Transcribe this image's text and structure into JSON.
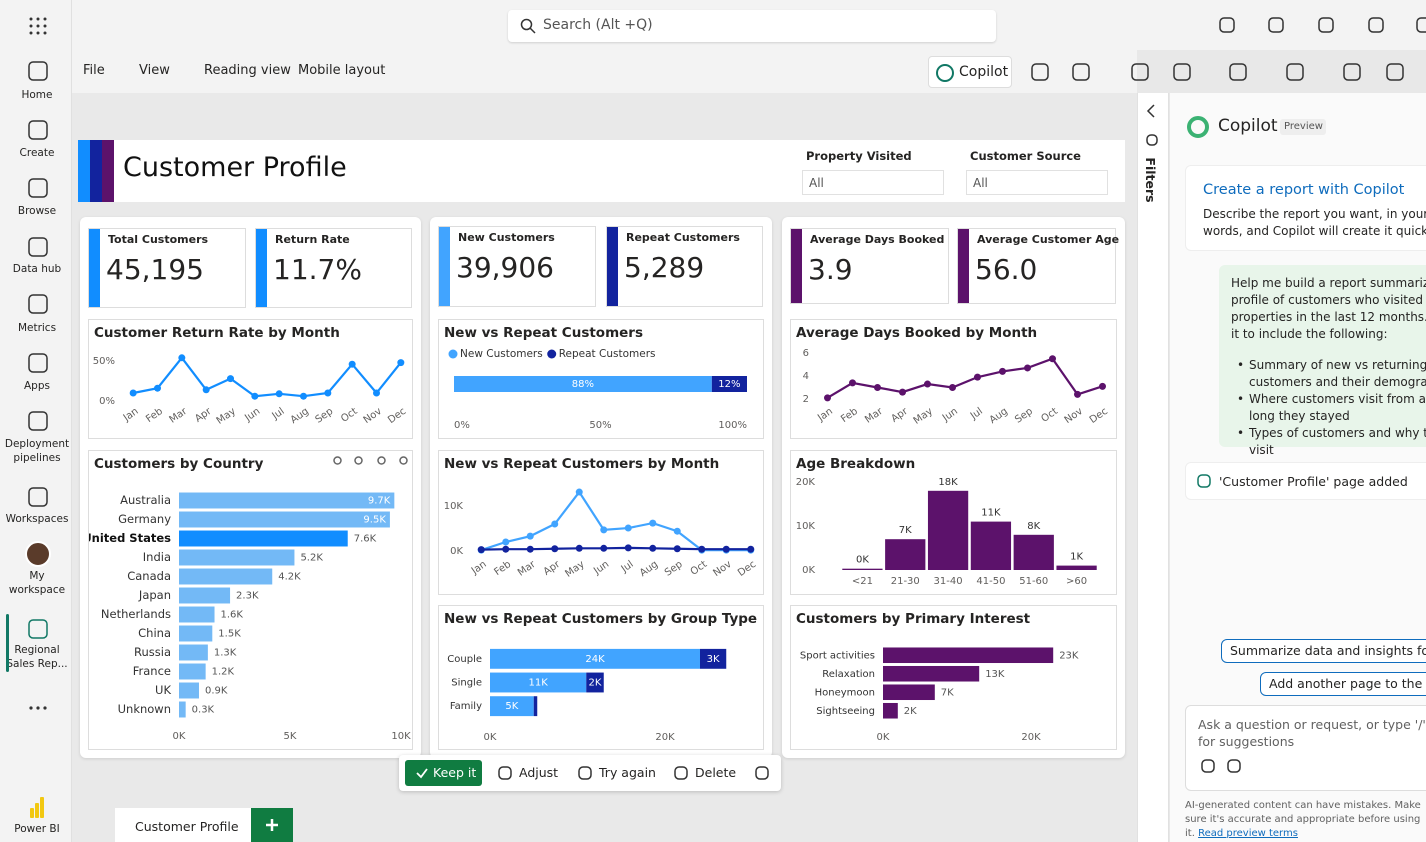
{
  "app": {
    "search": "Search (Alt +Q)",
    "brand": "Power BI",
    "nav": [
      "Home",
      "Create",
      "Browse",
      "Data hub",
      "Metrics",
      "Apps",
      "Deployment pipelines",
      "Workspaces",
      "My workspace",
      "Regional Sales Rep..."
    ],
    "menu": [
      "File",
      "View",
      "Reading view",
      "Mobile layout"
    ],
    "copilot_button": "Copilot",
    "filters": "Filters"
  },
  "report": {
    "title": "Customer Profile",
    "slicers": [
      {
        "label": "Property Visited",
        "value": "All"
      },
      {
        "label": "Customer Source",
        "value": "All"
      }
    ],
    "kpis": [
      {
        "label": "Total Customers",
        "value": "45,195",
        "color": "#118DFF"
      },
      {
        "label": "Return Rate",
        "value": "11.7%",
        "color": "#118DFF"
      },
      {
        "label": "New Customers",
        "value": "39,906",
        "color": "#41A4FF"
      },
      {
        "label": "Repeat Customers",
        "value": "5,289",
        "color": "#12239E"
      },
      {
        "label": "Average Days Booked",
        "value": "3.9",
        "color": "#5C126B"
      },
      {
        "label": "Average Customer Age",
        "value": "56.0",
        "color": "#5C126B"
      }
    ],
    "charts": [
      {
        "type": "line",
        "title": "Customer Return Rate by Month",
        "categories": [
          "Jan",
          "Feb",
          "Mar",
          "Apr",
          "May",
          "Jun",
          "Jul",
          "Aug",
          "Sep",
          "Oct",
          "Nov",
          "Dec"
        ],
        "values": [
          10,
          16,
          54,
          14,
          28,
          6,
          9,
          6,
          10,
          46,
          10,
          48
        ],
        "color": "#118DFF",
        "ylim": [
          0,
          55
        ],
        "yticks": [
          {
            "value": 0,
            "label": "0%"
          },
          {
            "value": 50,
            "label": "50%"
          }
        ]
      },
      {
        "type": "stacked_hbar",
        "title": "New vs Repeat Customers",
        "series": [
          {
            "name": "New Customers",
            "color": "#41A4FF",
            "values": [
              88
            ],
            "value_labels": [
              "88%"
            ]
          },
          {
            "name": "Repeat Customers",
            "color": "#12239E",
            "values": [
              12
            ],
            "value_labels": [
              "12%"
            ]
          }
        ],
        "xlim": [
          0,
          100
        ],
        "xticks": [
          {
            "value": 0,
            "label": "0%"
          },
          {
            "value": 50,
            "label": "50%"
          },
          {
            "value": 100,
            "label": "100%"
          }
        ]
      },
      {
        "type": "line",
        "title": "Average Days Booked by Month",
        "categories": [
          "Jan",
          "Feb",
          "Mar",
          "Apr",
          "May",
          "Jun",
          "Jul",
          "Aug",
          "Sep",
          "Oct",
          "Nov",
          "Dec"
        ],
        "values": [
          2.1,
          3.4,
          3.0,
          2.6,
          3.3,
          3.0,
          3.9,
          4.4,
          4.7,
          5.5,
          2.4,
          3.1
        ],
        "color": "#5C126B",
        "ylim": [
          1.5,
          6.5
        ],
        "yticks": [
          2,
          4,
          6
        ]
      },
      {
        "type": "hbar",
        "title": "Customers by Country",
        "categories": [
          "Australia",
          "Germany",
          "United States",
          "India",
          "Canada",
          "Japan",
          "Netherlands",
          "China",
          "Russia",
          "France",
          "UK",
          "Unknown"
        ],
        "values": [
          9700,
          9500,
          7600,
          5200,
          4200,
          2300,
          1600,
          1500,
          1300,
          1200,
          900,
          300
        ],
        "value_labels": [
          "9.7K",
          "9.5K",
          "7.6K",
          "5.2K",
          "4.2K",
          "2.3K",
          "1.6K",
          "1.5K",
          "1.3K",
          "1.2K",
          "0.9K",
          "0.3K"
        ],
        "color": "#73B9F6",
        "xlim": [
          0,
          10000
        ],
        "xticks": [
          {
            "value": 0,
            "label": "0K"
          },
          {
            "value": 5000,
            "label": "5K"
          },
          {
            "value": 10000,
            "label": "10K"
          }
        ]
      },
      {
        "type": "line",
        "title": "New vs Repeat Customers by Month",
        "categories": [
          "Jan",
          "Feb",
          "Mar",
          "Apr",
          "May",
          "Jun",
          "Jul",
          "Aug",
          "Sep",
          "Oct",
          "Nov",
          "Dec"
        ],
        "series": [
          {
            "color": "#41A4FF",
            "values": [
              200,
              2000,
              3300,
              6000,
              13100,
              4700,
              5100,
              6200,
              4400,
              200,
              200,
              200
            ]
          },
          {
            "color": "#12239E",
            "values": [
              300,
              400,
              400,
              500,
              600,
              600,
              700,
              600,
              500,
              400,
              400,
              400
            ]
          }
        ],
        "ylim": [
          0,
          14000
        ],
        "yticks": [
          {
            "value": 0,
            "label": "0K"
          },
          {
            "value": 10000,
            "label": "10K"
          }
        ]
      },
      {
        "type": "bar",
        "title": "Age Breakdown",
        "categories": [
          "<21",
          "21-30",
          "31-40",
          "41-50",
          "51-60",
          ">60"
        ],
        "values": [
          300,
          7000,
          18000,
          11000,
          8000,
          1000
        ],
        "value_labels": [
          "0K",
          "7K",
          "18K",
          "11K",
          "8K",
          "1K"
        ],
        "color": "#5C126B",
        "ylim": [
          0,
          20000
        ],
        "yticks": [
          {
            "value": 0,
            "label": "0K"
          },
          {
            "value": 10000,
            "label": "10K"
          },
          {
            "value": 20000,
            "label": "20K"
          }
        ]
      },
      {
        "type": "stacked_hbar",
        "title": "New vs Repeat Customers by Group Type",
        "categories": [
          "Couple",
          "Single",
          "Family"
        ],
        "series": [
          {
            "color": "#41A4FF",
            "values": [
              24000,
              11000,
              5000
            ],
            "value_labels": [
              "24K",
              "11K",
              "5K"
            ]
          },
          {
            "color": "#12239E",
            "values": [
              3000,
              2000,
              400
            ],
            "value_labels": [
              "3K",
              "2K",
              null
            ]
          }
        ],
        "xlim": [
          0,
          30000
        ],
        "xticks": [
          {
            "value": 0,
            "label": "0K"
          },
          {
            "value": 20000,
            "label": "20K"
          }
        ]
      },
      {
        "type": "hbar",
        "title": "Customers by Primary Interest",
        "categories": [
          "Sport activities",
          "Relaxation",
          "Honeymoon",
          "Sightseeing"
        ],
        "values": [
          23000,
          13000,
          7000,
          2000
        ],
        "value_labels": [
          "23K",
          "13K",
          "7K",
          "2K"
        ],
        "color": "#5C126B",
        "xlim": [
          0,
          30000
        ],
        "xticks": [
          {
            "value": 0,
            "label": "0K"
          },
          {
            "value": 20000,
            "label": "20K"
          }
        ]
      }
    ],
    "actions": [
      "Keep it",
      "Adjust",
      "Try again",
      "Delete"
    ],
    "tabs": [
      "Customer Profile"
    ]
  },
  "copilot": {
    "title": "Copilot",
    "badge": "Preview",
    "card_title": "Create a report with Copilot",
    "card_text": "Describe the report you want, in your own words, and Copilot will create it quickly.",
    "prompt": "Help me build a report summarizing profile of customers who visited our properties in the last 12 months. I want it to include the following:",
    "bullets": [
      "Summary of new vs returning customers and their demographics",
      "Where customers visit from and how long they stayed",
      "Types of customers and why they visit"
    ],
    "status": "'Customer Profile' page added",
    "suggestions": [
      "Summarize data and insights form this page",
      "Add another page to the report"
    ],
    "input": "Ask a question or request, or type '/' for suggestions",
    "disclaimer": "AI-generated content can have mistakes. Make sure it's accurate and appropriate before using it.",
    "link": "Read preview terms"
  }
}
